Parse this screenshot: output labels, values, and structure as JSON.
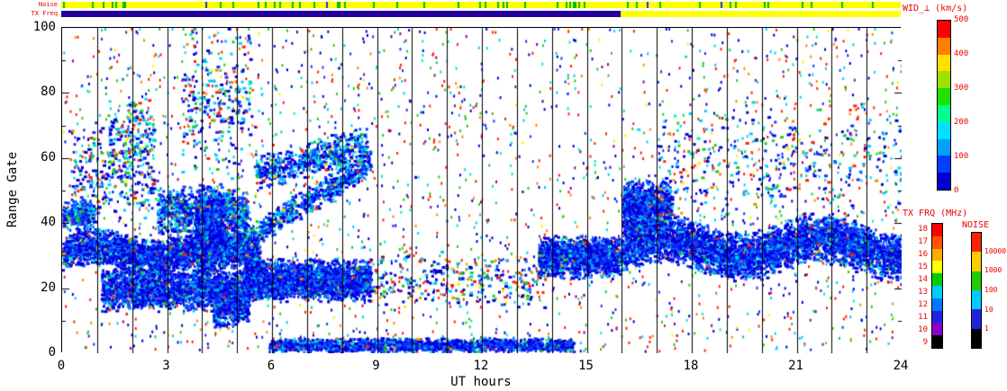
{
  "strips": {
    "noise_label": "Noise",
    "tx_label": "TX Freq",
    "noise_strip": {
      "bg": "#ffff00",
      "tick_colors": [
        [
          "#00bb00",
          0.1
        ],
        [
          "#2233dd",
          0.012
        ]
      ]
    },
    "tx_strip": {
      "segments": [
        {
          "t0": 0,
          "t1": 16,
          "color": "#220099"
        },
        {
          "t0": 16,
          "t1": 24,
          "color": "#ffff00"
        }
      ]
    }
  },
  "axes": {
    "xlabel": "UT hours",
    "ylabel": "Range Gate",
    "xticks": [
      "0",
      "3",
      "6",
      "9",
      "12",
      "15",
      "18",
      "21",
      "24"
    ],
    "yticks": [
      "100",
      "80",
      "60",
      "40",
      "20",
      "0"
    ]
  },
  "colorbars": {
    "wid": {
      "title": "WID_⊥ (km/s)",
      "ticks": [
        "500",
        "400",
        "300",
        "200",
        "100",
        "0"
      ],
      "segments": [
        "#ff0000",
        "#ff8000",
        "#ffe000",
        "#a0e000",
        "#20e000",
        "#00ff90",
        "#00e0ff",
        "#00a0ff",
        "#0040ff",
        "#0000d0"
      ]
    },
    "tx": {
      "title": "TX FRQ (MHz)",
      "ticks": [
        "18",
        "17",
        "16",
        "15",
        "14",
        "13",
        "12",
        "11",
        "10",
        "9"
      ],
      "segments": [
        "#ff0000",
        "#ff5500",
        "#ffaa00",
        "#ffff00",
        "#00cc00",
        "#00ccff",
        "#0077ff",
        "#2222dd",
        "#8800cc",
        "#000000"
      ]
    },
    "noise": {
      "title": "NOISE",
      "ticks": [
        "10000",
        "1000",
        "100",
        "10",
        "1"
      ],
      "segments": [
        "#ff2200",
        "#ffcc00",
        "#22cc00",
        "#00ccff",
        "#2222dd",
        "#000000"
      ]
    }
  },
  "chart_data": {
    "type": "scatter",
    "title": "",
    "xlabel": "UT hours",
    "ylabel": "Range Gate",
    "xlim": [
      0,
      24
    ],
    "ylim": [
      0,
      100
    ],
    "parameter": "WID_⊥ (km/s)",
    "legend_position": "right",
    "grid": "vertical hour lines",
    "hour_gridlines": true,
    "dominant_value": "low spectral width (blue, 0-100 km/s)",
    "bands": [
      {
        "desc": "main band 0-5.6h",
        "t0": 0.0,
        "t1": 5.6,
        "g0": 25,
        "g1": 36,
        "n": 2600,
        "pal": "dense",
        "wave": {
          "amp": 2,
          "per": 3.5
        }
      },
      {
        "desc": "lower band 1-5h",
        "t0": 1.1,
        "t1": 5.3,
        "g0": 13,
        "g1": 25,
        "n": 2000,
        "pal": "dense"
      },
      {
        "desc": "upper cluster 3-5h",
        "t0": 2.7,
        "t1": 5.3,
        "g0": 36,
        "g1": 50,
        "n": 900,
        "pal": "dense2"
      },
      {
        "desc": "dense column ~4h",
        "t0": 3.8,
        "t1": 4.6,
        "g0": 20,
        "g1": 50,
        "n": 700,
        "pal": "dense"
      },
      {
        "desc": "low extension 4.3-5.3h",
        "t0": 4.3,
        "t1": 5.3,
        "g0": 8,
        "g1": 20,
        "n": 450,
        "pal": "dense"
      },
      {
        "desc": "ascending structure",
        "t0": 4.5,
        "t1": 8.8,
        "g0": 26,
        "g1": 34,
        "n": 750,
        "pal": "dense2",
        "slope": {
          "gEnd": 58
        }
      },
      {
        "desc": "ascending upper part",
        "t0": 5.5,
        "t1": 8.7,
        "g0": 50,
        "g1": 60,
        "n": 550,
        "pal": "dense2",
        "slope": {
          "gEnd": 64
        }
      },
      {
        "desc": "band 5-9h",
        "t0": 5.2,
        "t1": 8.8,
        "g0": 16,
        "g1": 28,
        "n": 2300,
        "pal": "dense"
      },
      {
        "desc": "bottom band near gate 0",
        "t0": 5.9,
        "t1": 14.6,
        "g0": 0,
        "g1": 4,
        "n": 1600,
        "pal": "dense"
      },
      {
        "desc": "sparse midday scatter",
        "t0": 8.8,
        "t1": 13.8,
        "g0": 14,
        "g1": 30,
        "n": 280,
        "pal": "mixed"
      },
      {
        "desc": "pre-16h band",
        "t0": 13.6,
        "t1": 16.0,
        "g0": 23,
        "g1": 35,
        "n": 1300,
        "pal": "dense"
      },
      {
        "desc": "evening band 16-24h",
        "t0": 16.0,
        "t1": 24.0,
        "g0": 25,
        "g1": 39,
        "n": 4200,
        "pal": "dense",
        "wave": {
          "amp": 3,
          "per": 4.5
        }
      },
      {
        "desc": "tall blob 16-17h",
        "t0": 16.0,
        "t1": 17.4,
        "g0": 38,
        "g1": 52,
        "n": 800,
        "pal": "dense"
      },
      {
        "desc": "early upper scatter",
        "t0": 0.2,
        "t1": 2.6,
        "g0": 40,
        "g1": 70,
        "n": 300,
        "pal": "mixed2"
      },
      {
        "desc": "early high scatter",
        "t0": 1.3,
        "t1": 2.6,
        "g0": 55,
        "g1": 78,
        "n": 160,
        "pal": "mixed2"
      },
      {
        "desc": "hour-0 clump",
        "t0": 0.0,
        "t1": 0.9,
        "g0": 38,
        "g1": 46,
        "n": 240,
        "pal": "dense2"
      },
      {
        "desc": "4-5h high scatter",
        "t0": 3.4,
        "t1": 5.4,
        "g0": 55,
        "g1": 100,
        "n": 280,
        "pal": "mixed2"
      },
      {
        "desc": "evening upper scatter",
        "t0": 17.0,
        "t1": 24.0,
        "g0": 40,
        "g1": 75,
        "n": 380,
        "pal": "mixed2"
      }
    ],
    "background_noise": {
      "n": 2300,
      "pal": "noise"
    },
    "palettes": {
      "dense": [
        [
          "#0000dd",
          0.5
        ],
        [
          "#1133ff",
          0.22
        ],
        [
          "#0066ff",
          0.12
        ],
        [
          "#00aaff",
          0.08
        ],
        [
          "#00eecc",
          0.04
        ],
        [
          "#22cc22",
          0.02
        ],
        [
          "#ff8800",
          0.01
        ],
        [
          "#ff2200",
          0.01
        ]
      ],
      "dense2": [
        [
          "#0000dd",
          0.35
        ],
        [
          "#1133ff",
          0.2
        ],
        [
          "#0066ff",
          0.15
        ],
        [
          "#00ccff",
          0.15
        ],
        [
          "#00eebb",
          0.08
        ],
        [
          "#22cc22",
          0.04
        ],
        [
          "#ffcc00",
          0.015
        ],
        [
          "#ff2200",
          0.015
        ]
      ],
      "mixed": [
        [
          "#0000dd",
          0.3
        ],
        [
          "#0066ff",
          0.15
        ],
        [
          "#00ccff",
          0.12
        ],
        [
          "#22cc22",
          0.13
        ],
        [
          "#ff2200",
          0.15
        ],
        [
          "#ff8800",
          0.07
        ],
        [
          "#ffee00",
          0.04
        ],
        [
          "#880099",
          0.04
        ]
      ],
      "mixed2": [
        [
          "#0000dd",
          0.3
        ],
        [
          "#1133ff",
          0.15
        ],
        [
          "#00ccff",
          0.18
        ],
        [
          "#22cc22",
          0.12
        ],
        [
          "#ff2200",
          0.1
        ],
        [
          "#00eebb",
          0.08
        ],
        [
          "#ff8800",
          0.04
        ],
        [
          "#ffee00",
          0.03
        ]
      ],
      "noise": [
        [
          "#ff2200",
          0.22
        ],
        [
          "#0000dd",
          0.2
        ],
        [
          "#1133ff",
          0.1
        ],
        [
          "#00ccff",
          0.12
        ],
        [
          "#22cc22",
          0.14
        ],
        [
          "#ff8800",
          0.07
        ],
        [
          "#00eebb",
          0.07
        ],
        [
          "#ffee00",
          0.04
        ],
        [
          "#880099",
          0.04
        ]
      ]
    }
  }
}
